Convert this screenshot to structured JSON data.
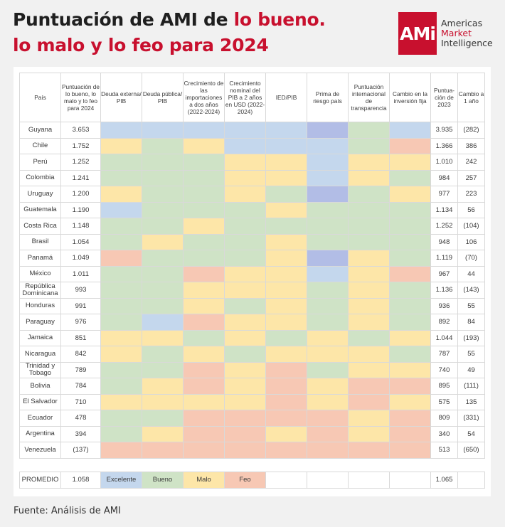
{
  "title": {
    "line1_prefix": "Puntuación de AMI de ",
    "line1_red": "lo bueno.",
    "line2": "lo malo y lo feo para 2024"
  },
  "logo": {
    "mark": "AMi",
    "line1": "Americas",
    "line2": "Market",
    "line3": "Intelligence"
  },
  "colors": {
    "excelente": "#c4d7ed",
    "bueno": "#cfe3c6",
    "malo": "#fde6a8",
    "feo": "#f7c8b4",
    "excelente_dark": "#b2bde6",
    "title_red": "#c8102e"
  },
  "chart_data": {
    "type": "table",
    "columns": [
      "País",
      "Puntuación de lo bueno, lo malo y lo feo para 2024",
      "Deuda externa/ PIB",
      "Deuda pública/ PIB",
      "Crecimiento de las importaciones a dos años (2022-2024)",
      "Crecimiento nominal del PIB a 2 años en USD (2022-2024)",
      "IED/PIB",
      "Prima de riesgo país",
      "Puntuación internacional de transparencia",
      "Cambio en la inversión fija",
      "Puntua-ción de 2023",
      "Cambio a 1 año"
    ],
    "legend": [
      "Excelente",
      "Bueno",
      "Malo",
      "Feo"
    ],
    "rows": [
      {
        "country": "Guyana",
        "score": "3.653",
        "ratings": [
          "E",
          "E",
          "E",
          "E",
          "E",
          "X",
          "B",
          "E"
        ],
        "score2023": "3.935",
        "change": "(282)"
      },
      {
        "country": "Chile",
        "score": "1.752",
        "ratings": [
          "M",
          "B",
          "M",
          "E",
          "E",
          "E",
          "B",
          "F"
        ],
        "score2023": "1.366",
        "change": "386"
      },
      {
        "country": "Perú",
        "score": "1.252",
        "ratings": [
          "B",
          "B",
          "B",
          "M",
          "M",
          "E",
          "M",
          "M"
        ],
        "score2023": "1.010",
        "change": "242"
      },
      {
        "country": "Colombia",
        "score": "1.241",
        "ratings": [
          "B",
          "B",
          "B",
          "M",
          "M",
          "E",
          "M",
          "B"
        ],
        "score2023": "984",
        "change": "257"
      },
      {
        "country": "Uruguay",
        "score": "1.200",
        "ratings": [
          "M",
          "B",
          "B",
          "M",
          "B",
          "X",
          "B",
          "M"
        ],
        "score2023": "977",
        "change": "223"
      },
      {
        "country": "Guatemala",
        "score": "1.190",
        "ratings": [
          "E",
          "B",
          "B",
          "B",
          "M",
          "B",
          "B",
          "B"
        ],
        "score2023": "1.134",
        "change": "56"
      },
      {
        "country": "Costa Rica",
        "score": "1.148",
        "ratings": [
          "B",
          "B",
          "M",
          "B",
          "B",
          "B",
          "B",
          "B"
        ],
        "score2023": "1.252",
        "change": "(104)"
      },
      {
        "country": "Brasil",
        "score": "1.054",
        "ratings": [
          "B",
          "M",
          "B",
          "B",
          "M",
          "B",
          "B",
          "B"
        ],
        "score2023": "948",
        "change": "106"
      },
      {
        "country": "Panamá",
        "score": "1.049",
        "ratings": [
          "F",
          "B",
          "B",
          "B",
          "M",
          "X",
          "M",
          "B"
        ],
        "score2023": "1.119",
        "change": "(70)"
      },
      {
        "country": "México",
        "score": "1.011",
        "ratings": [
          "B",
          "B",
          "F",
          "M",
          "M",
          "E",
          "M",
          "F"
        ],
        "score2023": "967",
        "change": "44"
      },
      {
        "country": "República Dominicana",
        "score": "993",
        "ratings": [
          "B",
          "B",
          "M",
          "M",
          "M",
          "B",
          "M",
          "B"
        ],
        "score2023": "1.136",
        "change": "(143)"
      },
      {
        "country": "Honduras",
        "score": "991",
        "ratings": [
          "B",
          "B",
          "M",
          "B",
          "M",
          "B",
          "M",
          "B"
        ],
        "score2023": "936",
        "change": "55"
      },
      {
        "country": "Paraguay",
        "score": "976",
        "ratings": [
          "B",
          "E",
          "F",
          "M",
          "M",
          "B",
          "M",
          "B"
        ],
        "score2023": "892",
        "change": "84"
      },
      {
        "country": "Jamaica",
        "score": "851",
        "ratings": [
          "M",
          "M",
          "B",
          "M",
          "B",
          "M",
          "B",
          "M"
        ],
        "score2023": "1.044",
        "change": "(193)"
      },
      {
        "country": "Nicaragua",
        "score": "842",
        "ratings": [
          "M",
          "B",
          "M",
          "B",
          "M",
          "M",
          "M",
          "B"
        ],
        "score2023": "787",
        "change": "55"
      },
      {
        "country": "Trinidad y Tobago",
        "score": "789",
        "ratings": [
          "B",
          "B",
          "F",
          "M",
          "F",
          "B",
          "M",
          "M"
        ],
        "score2023": "740",
        "change": "49"
      },
      {
        "country": "Bolivia",
        "score": "784",
        "ratings": [
          "B",
          "M",
          "F",
          "M",
          "F",
          "M",
          "F",
          "F"
        ],
        "score2023": "895",
        "change": "(111)"
      },
      {
        "country": "El Salvador",
        "score": "710",
        "ratings": [
          "M",
          "M",
          "M",
          "M",
          "F",
          "M",
          "F",
          "M"
        ],
        "score2023": "575",
        "change": "135"
      },
      {
        "country": "Ecuador",
        "score": "478",
        "ratings": [
          "B",
          "B",
          "F",
          "F",
          "F",
          "F",
          "M",
          "F"
        ],
        "score2023": "809",
        "change": "(331)"
      },
      {
        "country": "Argentina",
        "score": "394",
        "ratings": [
          "B",
          "M",
          "F",
          "F",
          "M",
          "F",
          "M",
          "F"
        ],
        "score2023": "340",
        "change": "54"
      },
      {
        "country": "Venezuela",
        "score": "(137)",
        "ratings": [
          "F",
          "F",
          "F",
          "F",
          "F",
          "F",
          "F",
          "F"
        ],
        "score2023": "513",
        "change": "(650)"
      }
    ],
    "average": {
      "label": "PROMEDIO",
      "score": "1.058",
      "score2023": "1.065"
    }
  },
  "footer": "Fuente: Análisis de AMI"
}
